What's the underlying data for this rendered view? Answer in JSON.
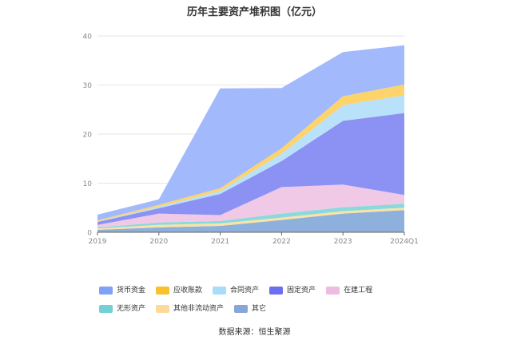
{
  "chart_data": {
    "type": "area",
    "stacked": true,
    "title": "历年主要资产堆积图（亿元）",
    "categories": [
      "2019",
      "2020",
      "2021",
      "2022",
      "2023",
      "2024Q1"
    ],
    "ylim": [
      0,
      40
    ],
    "yticks": [
      0,
      10,
      20,
      30,
      40
    ],
    "grid": true,
    "legend_position": "bottom",
    "series": [
      {
        "name": "其它",
        "color": "#8eb0dc",
        "values": [
          0.5,
          1.0,
          1.3,
          2.5,
          3.8,
          4.5
        ]
      },
      {
        "name": "其他非流动资产",
        "color": "#fde2a3",
        "values": [
          0.3,
          0.5,
          0.5,
          0.5,
          0.5,
          0.5
        ]
      },
      {
        "name": "无形资产",
        "color": "#8ad9dd",
        "values": [
          0.2,
          0.5,
          0.5,
          0.8,
          0.8,
          0.8
        ]
      },
      {
        "name": "在建工程",
        "color": "#f0c9e6",
        "values": [
          0.5,
          1.8,
          1.2,
          5.4,
          4.6,
          1.8
        ]
      },
      {
        "name": "固定资产",
        "color": "#8b92f3",
        "values": [
          0.6,
          1.1,
          4.3,
          5.3,
          13.0,
          16.7
        ]
      },
      {
        "name": "合同资产",
        "color": "#b9e1fa",
        "values": [
          0.1,
          0.3,
          0.6,
          1.5,
          3.2,
          3.6
        ]
      },
      {
        "name": "应收账款",
        "color": "#fdd36b",
        "values": [
          0.2,
          0.4,
          0.6,
          1.1,
          1.8,
          2.2
        ]
      },
      {
        "name": "货币资金",
        "color": "#a2b9fc",
        "values": [
          1.2,
          1.1,
          20.3,
          12.3,
          9.0,
          8.0
        ]
      }
    ],
    "legend_order": [
      "货币资金",
      "应收账款",
      "合同资产",
      "固定资产",
      "在建工程",
      "无形资产",
      "其他非流动资产",
      "其它"
    ]
  },
  "legend": [
    {
      "label": "货币资金",
      "color": "#7ea2f7"
    },
    {
      "label": "应收账款",
      "color": "#f9c12e"
    },
    {
      "label": "合同资产",
      "color": "#a8dcf8"
    },
    {
      "label": "固定资产",
      "color": "#6c6ff0"
    },
    {
      "label": "在建工程",
      "color": "#ecbde0"
    },
    {
      "label": "无形资产",
      "color": "#72d0d6"
    },
    {
      "label": "其他非流动资产",
      "color": "#fdd99a"
    },
    {
      "label": "其它",
      "color": "#86a6d6"
    }
  ],
  "source": "数据来源：恒生聚源"
}
